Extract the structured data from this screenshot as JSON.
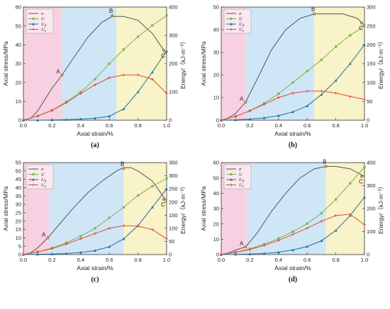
{
  "chart_data": [
    {
      "type": "line",
      "caption": "(a)",
      "xlabel": "Axial strain/%",
      "ylabel": "Axial stress/MPa",
      "ylabel_right": "Energy/（kJ·m⁻³）",
      "xlim": [
        0,
        1.0
      ],
      "xticks": [
        "0.0",
        "0.2",
        "0.4",
        "0.6",
        "0.8",
        "1.0"
      ],
      "ylim": [
        0,
        60
      ],
      "yticks": [
        "0",
        "10",
        "20",
        "30",
        "40",
        "50",
        "60"
      ],
      "ylim_right": [
        0,
        400
      ],
      "yticks_right": [
        "0",
        "100",
        "200",
        "300",
        "400"
      ],
      "zones": [
        0.27,
        0.65
      ],
      "points": [
        {
          "label": "A",
          "x": 0.27,
          "y": 24
        },
        {
          "label": "B",
          "x": 0.62,
          "y": 55.5
        },
        {
          "label": "C",
          "x": 0.98,
          "y": 37
        }
      ],
      "series": [
        {
          "name": "σ",
          "axis": "left",
          "color": "#555555",
          "marker": "none",
          "x": [
            0,
            0.05,
            0.1,
            0.15,
            0.2,
            0.27,
            0.35,
            0.45,
            0.55,
            0.62,
            0.7,
            0.8,
            0.9,
            1.0
          ],
          "y": [
            0,
            1,
            5,
            11,
            17,
            24,
            33,
            44,
            52,
            55,
            55,
            53,
            46,
            35
          ]
        },
        {
          "name": "U",
          "axis": "right",
          "color": "#7ab648",
          "marker": "square",
          "x": [
            0,
            0.1,
            0.2,
            0.3,
            0.4,
            0.5,
            0.6,
            0.7,
            0.8,
            0.9,
            1.0
          ],
          "y": [
            0,
            15,
            35,
            65,
            100,
            145,
            200,
            250,
            295,
            335,
            370
          ]
        },
        {
          "name": "Ud",
          "axis": "right",
          "color": "#1f6f9f",
          "marker": "triangle",
          "x": [
            0,
            0.1,
            0.2,
            0.3,
            0.4,
            0.5,
            0.6,
            0.7,
            0.8,
            0.9,
            1.0
          ],
          "y": [
            0,
            0,
            1,
            2,
            4,
            7,
            14,
            40,
            100,
            170,
            245
          ]
        },
        {
          "name": "Ue",
          "axis": "right",
          "color": "#e24a33",
          "marker": "plus",
          "x": [
            0,
            0.1,
            0.2,
            0.3,
            0.4,
            0.5,
            0.6,
            0.7,
            0.8,
            0.9,
            1.0
          ],
          "y": [
            0,
            15,
            35,
            62,
            95,
            125,
            150,
            160,
            160,
            145,
            95
          ]
        }
      ]
    },
    {
      "type": "line",
      "caption": "(b)",
      "xlabel": "Axial strain/%",
      "ylabel": "Axial stress/MPa",
      "ylabel_right": "Energy/（kJ·m⁻³）",
      "xlim": [
        0,
        1.0
      ],
      "xticks": [
        "0.0",
        "0.2",
        "0.4",
        "0.6",
        "0.8",
        "1.0"
      ],
      "ylim": [
        0,
        50
      ],
      "yticks": [
        "0",
        "10",
        "20",
        "30",
        "40",
        "50"
      ],
      "ylim_right": [
        0,
        300
      ],
      "yticks_right": [
        "0",
        "50",
        "100",
        "150",
        "200",
        "250",
        "300"
      ],
      "zones": [
        0.17,
        0.65
      ],
      "points": [
        {
          "label": "A",
          "x": 0.17,
          "y": 8
        },
        {
          "label": "B",
          "x": 0.65,
          "y": 47
        },
        {
          "label": "C",
          "x": 0.98,
          "y": 43
        }
      ],
      "series": [
        {
          "name": "σ",
          "axis": "left",
          "color": "#555555",
          "marker": "none",
          "x": [
            0,
            0.05,
            0.1,
            0.17,
            0.25,
            0.35,
            0.45,
            0.55,
            0.65,
            0.75,
            0.85,
            0.95,
            1.0
          ],
          "y": [
            0,
            1,
            3,
            8,
            18,
            31,
            40,
            45,
            47,
            47,
            47,
            45,
            42
          ]
        },
        {
          "name": "U",
          "axis": "right",
          "color": "#7ab648",
          "marker": "square",
          "x": [
            0,
            0.1,
            0.2,
            0.3,
            0.4,
            0.5,
            0.6,
            0.7,
            0.8,
            0.9,
            1.0
          ],
          "y": [
            0,
            10,
            25,
            45,
            70,
            100,
            130,
            160,
            195,
            225,
            250
          ]
        },
        {
          "name": "Ud",
          "axis": "right",
          "color": "#1f6f9f",
          "marker": "triangle",
          "x": [
            0,
            0.1,
            0.2,
            0.3,
            0.4,
            0.5,
            0.6,
            0.7,
            0.8,
            0.9,
            1.0
          ],
          "y": [
            0,
            1,
            3,
            6,
            12,
            22,
            38,
            68,
            105,
            150,
            200
          ]
        },
        {
          "name": "Ue",
          "axis": "right",
          "color": "#e24a33",
          "marker": "plus",
          "x": [
            0,
            0.1,
            0.2,
            0.3,
            0.4,
            0.5,
            0.6,
            0.7,
            0.8,
            0.9,
            1.0
          ],
          "y": [
            0,
            10,
            25,
            42,
            60,
            72,
            77,
            77,
            72,
            63,
            55
          ]
        }
      ]
    },
    {
      "type": "line",
      "caption": "(c)",
      "xlabel": "Axial strain/%",
      "ylabel": "Axial stress/MPa",
      "ylabel_right": "Energy/（kJ·m⁻³）",
      "xlim": [
        0,
        1.0
      ],
      "xticks": [
        "0.0",
        "0.2",
        "0.4",
        "0.6",
        "0.8",
        "1.0"
      ],
      "ylim": [
        0,
        55
      ],
      "yticks": [
        "0",
        "5",
        "10",
        "15",
        "20",
        "25",
        "30",
        "35",
        "40",
        "45",
        "50",
        "55"
      ],
      "ylim_right": [
        0,
        350
      ],
      "yticks_right": [
        "0",
        "50",
        "100",
        "150",
        "200",
        "250",
        "300",
        "350"
      ],
      "zones": [
        0.17,
        0.2,
        0.7
      ],
      "points": [
        {
          "label": "A",
          "x": 0.17,
          "y": 10
        },
        {
          "label": "B",
          "x": 0.7,
          "y": 51.5
        },
        {
          "label": "C",
          "x": 0.98,
          "y": 33
        }
      ],
      "series": [
        {
          "name": "σ",
          "axis": "left",
          "color": "#555555",
          "marker": "none",
          "x": [
            0,
            0.05,
            0.1,
            0.17,
            0.25,
            0.35,
            0.45,
            0.55,
            0.65,
            0.7,
            0.75,
            0.8,
            0.9,
            1.0
          ],
          "y": [
            0,
            1,
            4,
            10,
            18,
            28,
            37,
            44,
            50,
            52,
            52,
            50,
            44,
            32
          ]
        },
        {
          "name": "U",
          "axis": "right",
          "color": "#7ab648",
          "marker": "square",
          "x": [
            0,
            0.1,
            0.2,
            0.3,
            0.4,
            0.5,
            0.6,
            0.7,
            0.8,
            0.9,
            1.0
          ],
          "y": [
            0,
            10,
            25,
            45,
            70,
            100,
            140,
            180,
            225,
            260,
            290
          ]
        },
        {
          "name": "Ud",
          "axis": "right",
          "color": "#1f6f9f",
          "marker": "triangle",
          "x": [
            0,
            0.1,
            0.2,
            0.3,
            0.4,
            0.5,
            0.6,
            0.7,
            0.8,
            0.9,
            1.0
          ],
          "y": [
            0,
            1,
            2,
            4,
            8,
            15,
            30,
            60,
            110,
            180,
            250
          ]
        },
        {
          "name": "Ue",
          "axis": "right",
          "color": "#e24a33",
          "marker": "plus",
          "x": [
            0,
            0.1,
            0.2,
            0.3,
            0.4,
            0.5,
            0.6,
            0.7,
            0.8,
            0.9,
            1.0
          ],
          "y": [
            0,
            10,
            23,
            40,
            60,
            80,
            100,
            110,
            108,
            95,
            60
          ]
        }
      ]
    },
    {
      "type": "line",
      "caption": "(d)",
      "xlabel": "Axial strain/%",
      "ylabel": "Axial stress/MPa",
      "ylabel_right": "Energy/（kJ·m⁻³）",
      "xlim": [
        0,
        1.0
      ],
      "xticks": [
        "0.0",
        "0.2",
        "0.4",
        "0.6",
        "0.8",
        "1.0"
      ],
      "ylim": [
        0,
        60
      ],
      "yticks": [
        "0",
        "10",
        "20",
        "30",
        "40",
        "50",
        "60"
      ],
      "ylim_right": [
        0,
        400
      ],
      "yticks_right": [
        "0",
        "100",
        "200",
        "300",
        "400"
      ],
      "zones": [
        0.17,
        0.2,
        0.73
      ],
      "points": [
        {
          "label": "A",
          "x": 0.17,
          "y": 5
        },
        {
          "label": "B",
          "x": 0.73,
          "y": 57.5
        },
        {
          "label": "C",
          "x": 0.98,
          "y": 51
        }
      ],
      "series": [
        {
          "name": "σ",
          "axis": "left",
          "color": "#555555",
          "marker": "none",
          "x": [
            0,
            0.05,
            0.1,
            0.17,
            0.25,
            0.35,
            0.45,
            0.55,
            0.65,
            0.73,
            0.8,
            0.9,
            1.0
          ],
          "y": [
            0,
            1,
            3,
            5,
            14,
            28,
            40,
            50,
            56,
            57.5,
            57.5,
            56,
            51
          ]
        },
        {
          "name": "U",
          "axis": "right",
          "color": "#7ab648",
          "marker": "square",
          "x": [
            0,
            0.1,
            0.2,
            0.3,
            0.4,
            0.5,
            0.6,
            0.7,
            0.8,
            0.9,
            1.0
          ],
          "y": [
            0,
            10,
            25,
            45,
            70,
            100,
            135,
            180,
            240,
            310,
            380
          ]
        },
        {
          "name": "Ud",
          "axis": "right",
          "color": "#1f6f9f",
          "marker": "triangle",
          "x": [
            0,
            0.1,
            0.2,
            0.3,
            0.4,
            0.5,
            0.6,
            0.7,
            0.8,
            0.9,
            1.0
          ],
          "y": [
            0,
            1,
            2,
            5,
            10,
            20,
            35,
            60,
            105,
            170,
            250
          ]
        },
        {
          "name": "Ue",
          "axis": "right",
          "color": "#e24a33",
          "marker": "plus",
          "x": [
            0,
            0.1,
            0.2,
            0.3,
            0.4,
            0.5,
            0.6,
            0.7,
            0.8,
            0.9,
            1.0
          ],
          "y": [
            0,
            10,
            22,
            40,
            62,
            88,
            115,
            145,
            170,
            175,
            130
          ]
        }
      ]
    }
  ],
  "colors": {
    "zone1": "#f7d1e1",
    "zone2": "#cfe6f7",
    "zone3": "#f8f3c8",
    "zone_mix": "#e1ddf0"
  }
}
